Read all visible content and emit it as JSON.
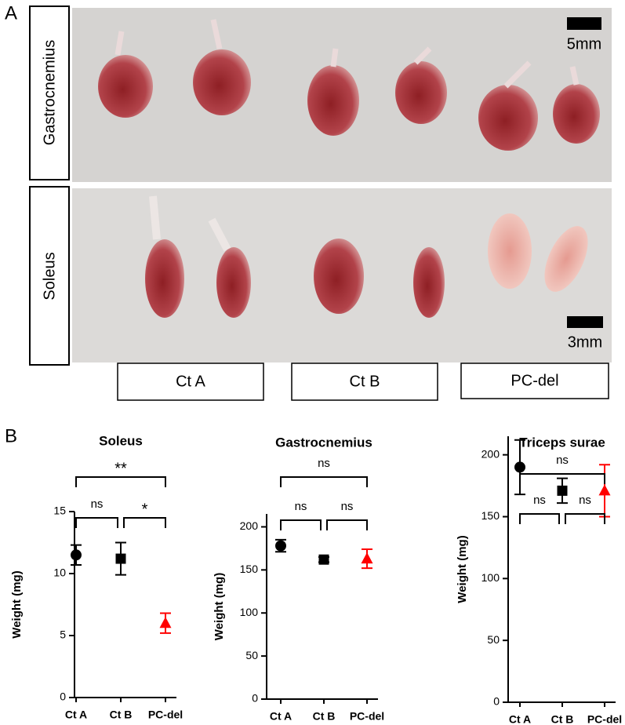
{
  "panel_a": {
    "label": "A",
    "rows": [
      "Gastrocnemius",
      "Soleus"
    ],
    "scale_bars": [
      "5mm",
      "3mm"
    ],
    "groups": [
      "Ct A",
      "Ct B",
      "PC-del"
    ]
  },
  "panel_b": {
    "label": "B"
  },
  "chart_data": [
    {
      "type": "dot",
      "title": "Soleus",
      "y_label": "Weight (mg)",
      "categories": [
        "Ct A",
        "Ct B",
        "PC-del"
      ],
      "values": [
        11.5,
        11.2,
        6.0
      ],
      "errors": [
        0.8,
        1.3,
        0.8
      ],
      "markers": [
        "circle",
        "square",
        "triangle"
      ],
      "colors": [
        "#000000",
        "#000000",
        "#ff0000"
      ],
      "ylim": [
        0,
        15
      ],
      "yticks": [
        0,
        5,
        10,
        15
      ],
      "significance": [
        {
          "pair": [
            "Ct A",
            "Ct B"
          ],
          "label": "ns"
        },
        {
          "pair": [
            "Ct B",
            "PC-del"
          ],
          "label": "*"
        },
        {
          "pair": [
            "Ct A",
            "PC-del"
          ],
          "label": "**"
        }
      ]
    },
    {
      "type": "dot",
      "title": "Gastrocnemius",
      "y_label": "Weight (mg)",
      "categories": [
        "Ct A",
        "Ct B",
        "PC-del"
      ],
      "values": [
        178,
        162,
        163
      ],
      "errors": [
        7,
        3,
        11
      ],
      "markers": [
        "circle",
        "square",
        "triangle"
      ],
      "colors": [
        "#000000",
        "#000000",
        "#ff0000"
      ],
      "ylim": [
        0,
        215
      ],
      "yticks": [
        0,
        50,
        100,
        150,
        200
      ],
      "significance": [
        {
          "pair": [
            "Ct A",
            "Ct B"
          ],
          "label": "ns"
        },
        {
          "pair": [
            "Ct B",
            "PC-del"
          ],
          "label": "ns"
        },
        {
          "pair": [
            "Ct A",
            "PC-del"
          ],
          "label": "ns"
        }
      ]
    },
    {
      "type": "dot",
      "title": "Triceps surae",
      "y_label": "Weight (mg)",
      "categories": [
        "Ct A",
        "Ct B",
        "PC-del"
      ],
      "values": [
        190,
        171,
        171
      ],
      "errors": [
        22,
        10,
        21
      ],
      "markers": [
        "circle",
        "square",
        "triangle"
      ],
      "colors": [
        "#000000",
        "#000000",
        "#ff0000"
      ],
      "ylim": [
        0,
        215
      ],
      "yticks": [
        0,
        50,
        100,
        150,
        200
      ],
      "significance": [
        {
          "pair": [
            "Ct A",
            "Ct B"
          ],
          "label": "ns"
        },
        {
          "pair": [
            "Ct B",
            "PC-del"
          ],
          "label": "ns"
        },
        {
          "pair": [
            "Ct A",
            "PC-del"
          ],
          "label": "ns"
        }
      ]
    }
  ]
}
